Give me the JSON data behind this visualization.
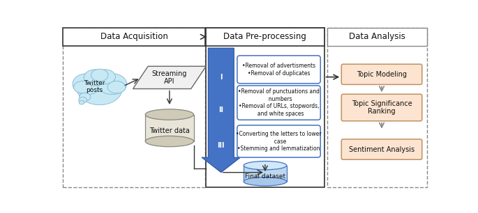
{
  "fig_width": 6.85,
  "fig_height": 3.06,
  "dpi": 100,
  "section_titles": [
    "Data Acquisition",
    "Data Pre-processing",
    "Data Analysis"
  ],
  "box2_labels": [
    "Topic Modeling",
    "Topic Significance\nRanking",
    "Sentiment Analysis"
  ],
  "step_labels": [
    "I",
    "II",
    "III"
  ],
  "step_texts": [
    "•Removal of advertisments\n•Removal of duplicates",
    "•Removal of punctuations and\n  numbers\n•Removal of URLs, stopwords,\n  and white spaces",
    "•Converting the letters to lower\n  case\n•Stemming and lemmatization"
  ],
  "bg_color": "#ffffff",
  "box_fill_orange": "#fce4d0",
  "blue_main": "#4472c4",
  "blue_light": "#bdd7ee",
  "blue_mid": "#9dc3e6",
  "cloud_fill": "#c8e8f4",
  "cloud_edge": "#7ab8d4",
  "cyl_fill": "#e8e4d8",
  "cyl_top": "#d4cfc0",
  "cyl_edge": "#888880",
  "para_fill": "#f0f0f0",
  "para_edge": "#666666",
  "orange_edge": "#c09060",
  "dashed_color": "#888888",
  "solid_color": "#333333",
  "arrow_color": "#333333",
  "text_color": "#111111"
}
